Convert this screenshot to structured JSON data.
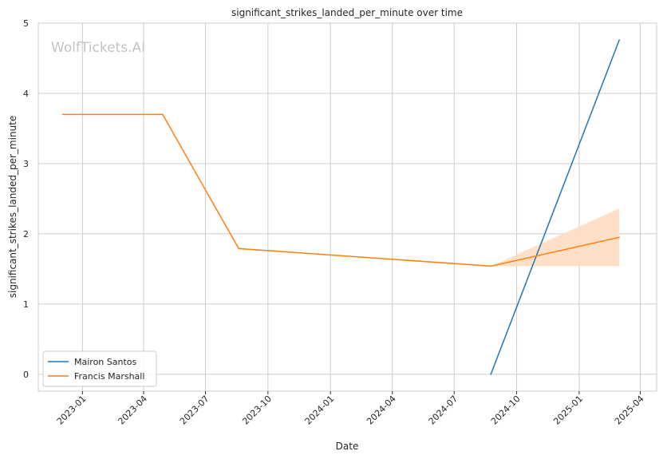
{
  "watermark": "WolfTickets.AI",
  "chart_data": {
    "type": "line",
    "title": "significant_strikes_landed_per_minute over time",
    "xlabel": "Date",
    "ylabel": "significant_strikes_landed_per_minute",
    "x_type": "date",
    "xlim": [
      "2022-10-28",
      "2025-04-25"
    ],
    "ylim": [
      -0.24,
      5.0
    ],
    "x_ticks": [
      "2023-01-01",
      "2023-04-01",
      "2023-07-01",
      "2023-10-01",
      "2024-01-01",
      "2024-04-01",
      "2024-07-01",
      "2024-10-01",
      "2025-01-01",
      "2025-04-01"
    ],
    "x_tick_labels": [
      "2023-01",
      "2023-04",
      "2023-07",
      "2023-10",
      "2024-01",
      "2024-04",
      "2024-07",
      "2024-10",
      "2025-01",
      "2025-04"
    ],
    "y_ticks": [
      0,
      1,
      2,
      3,
      4,
      5
    ],
    "grid": true,
    "legend_position": "lower-left",
    "series": [
      {
        "name": "Mairon Santos",
        "color": "#1f77b4",
        "points": [
          {
            "x": "2024-08-24",
            "y": 0.0
          },
          {
            "x": "2025-03-01",
            "y": 4.76
          }
        ]
      },
      {
        "name": "Francis Marshall",
        "color": "#ff7f0e",
        "points": [
          {
            "x": "2022-12-03",
            "y": 3.7
          },
          {
            "x": "2023-04-29",
            "y": 3.7
          },
          {
            "x": "2023-08-19",
            "y": 1.79
          },
          {
            "x": "2024-08-24",
            "y": 1.54
          },
          {
            "x": "2025-03-01",
            "y": 1.95
          }
        ],
        "band": {
          "color": "#ffdcc0",
          "points": [
            {
              "x": "2024-08-24",
              "lower": 1.54,
              "upper": 1.54
            },
            {
              "x": "2025-03-01",
              "lower": 1.54,
              "upper": 2.36
            }
          ]
        }
      }
    ]
  }
}
